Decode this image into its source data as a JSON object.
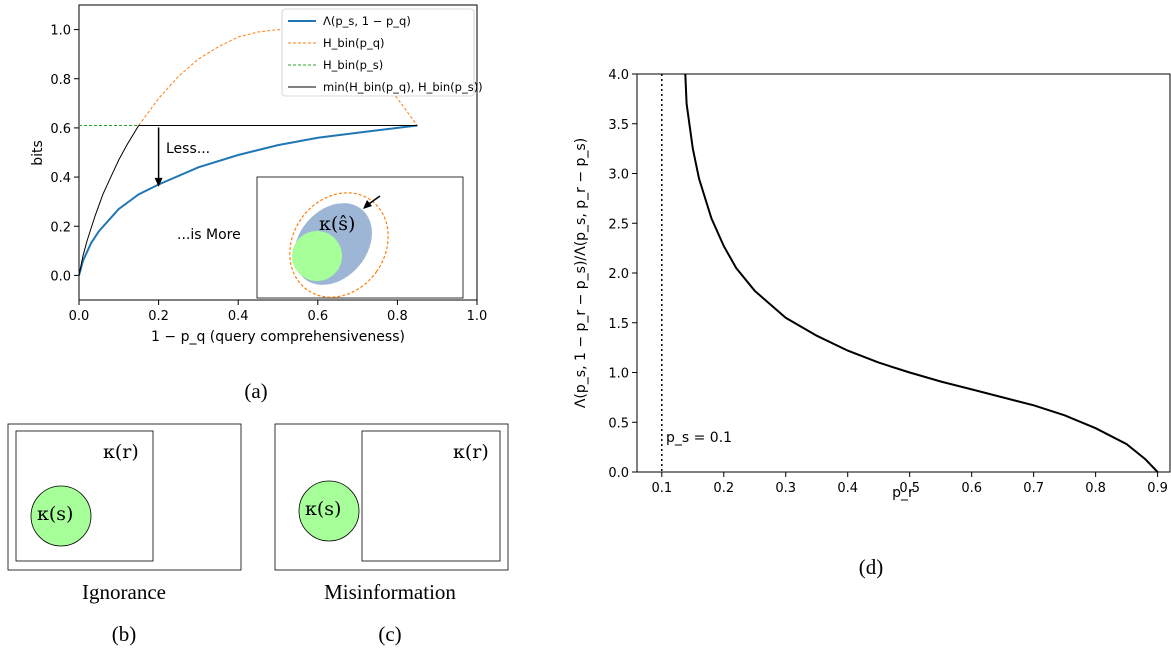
{
  "chart_data": [
    {
      "id": "a",
      "type": "line",
      "caption": "(a)",
      "xlabel": "1 − p_q (query comprehensiveness)",
      "ylabel": "bits",
      "xlim": [
        0.0,
        1.0
      ],
      "ylim": [
        -0.1,
        1.1
      ],
      "xticks": [
        "0.0",
        "0.2",
        "0.4",
        "0.6",
        "0.8",
        "1.0"
      ],
      "yticks": [
        "0.0",
        "0.2",
        "0.4",
        "0.6",
        "0.8",
        "1.0"
      ],
      "grid": false,
      "legend_position": "top-right",
      "legend": [
        {
          "label": "Λ(p_s, 1 − p_q)",
          "color": "#1f77b4",
          "style": "solid"
        },
        {
          "label": "H_bin(p_q)",
          "color": "#ff7f0e",
          "style": "dashed"
        },
        {
          "label": "H_bin(p_s)",
          "color": "#2ca02c",
          "style": "dashed"
        },
        {
          "label": "min(H_bin(p_q), H_bin(p_s))",
          "color": "#000000",
          "style": "solid"
        }
      ],
      "series": [
        {
          "name": "Λ(p_s, 1 − p_q)",
          "x": [
            0.0,
            0.01,
            0.03,
            0.05,
            0.1,
            0.15,
            0.2,
            0.3,
            0.4,
            0.5,
            0.6,
            0.7,
            0.8,
            0.85
          ],
          "y": [
            0.0,
            0.06,
            0.13,
            0.18,
            0.27,
            0.33,
            0.37,
            0.44,
            0.49,
            0.53,
            0.56,
            0.58,
            0.6,
            0.61
          ]
        },
        {
          "name": "H_bin(p_q)",
          "x": [
            0.15,
            0.2,
            0.25,
            0.3,
            0.35,
            0.4,
            0.45,
            0.5,
            0.55,
            0.6,
            0.65,
            0.7,
            0.75,
            0.8,
            0.85
          ],
          "y": [
            0.61,
            0.72,
            0.81,
            0.88,
            0.93,
            0.97,
            0.99,
            1.0,
            0.99,
            0.97,
            0.93,
            0.88,
            0.81,
            0.72,
            0.61
          ]
        },
        {
          "name": "H_bin(p_s)",
          "x": [
            0.0,
            0.15
          ],
          "y": [
            0.61,
            0.61
          ]
        },
        {
          "name": "min(H_bin(p_q), H_bin(p_s))",
          "x": [
            0.0,
            0.01,
            0.02,
            0.04,
            0.06,
            0.08,
            0.1,
            0.12,
            0.15,
            0.85
          ],
          "y": [
            0.0,
            0.08,
            0.14,
            0.24,
            0.33,
            0.4,
            0.47,
            0.53,
            0.61,
            0.61
          ]
        }
      ],
      "annotations": [
        {
          "text": "Less...",
          "arrow_x": 0.2,
          "arrow_from_y": 0.61,
          "arrow_to_y": 0.36
        },
        {
          "text": "...is More"
        }
      ],
      "inset": {
        "label": "κ(ŝ)"
      }
    },
    {
      "id": "b",
      "type": "diagram",
      "caption": "(b)",
      "title": "Ignorance",
      "outer_label": "κ(r)",
      "inner_label": "κ(s)"
    },
    {
      "id": "c",
      "type": "diagram",
      "caption": "(c)",
      "title": "Misinformation",
      "outer_label": "κ(r)",
      "inner_label": "κ(s)"
    },
    {
      "id": "d",
      "type": "line",
      "caption": "(d)",
      "xlabel": "p_r",
      "ylabel": "Λ(p_s, 1 − p_r − p_s)/Λ(p_s, p_r − p_s)",
      "xlim": [
        0.06,
        0.92
      ],
      "ylim": [
        0.0,
        4.0
      ],
      "xticks": [
        "0.1",
        "0.2",
        "0.3",
        "0.4",
        "0.5",
        "0.6",
        "0.7",
        "0.8",
        "0.9"
      ],
      "yticks": [
        "0.0",
        "0.5",
        "1.0",
        "1.5",
        "2.0",
        "2.5",
        "3.0",
        "3.5",
        "4.0"
      ],
      "grid": false,
      "vline": {
        "x": 0.1,
        "label": "p_s = 0.1"
      },
      "series": [
        {
          "x": [
            0.138,
            0.14,
            0.15,
            0.16,
            0.18,
            0.2,
            0.22,
            0.25,
            0.3,
            0.35,
            0.4,
            0.45,
            0.5,
            0.55,
            0.6,
            0.65,
            0.7,
            0.75,
            0.8,
            0.85,
            0.88,
            0.9
          ],
          "y": [
            4.0,
            3.7,
            3.25,
            2.95,
            2.55,
            2.27,
            2.05,
            1.82,
            1.55,
            1.37,
            1.22,
            1.1,
            1.0,
            0.91,
            0.83,
            0.75,
            0.67,
            0.57,
            0.44,
            0.28,
            0.13,
            0.0
          ]
        }
      ]
    }
  ]
}
